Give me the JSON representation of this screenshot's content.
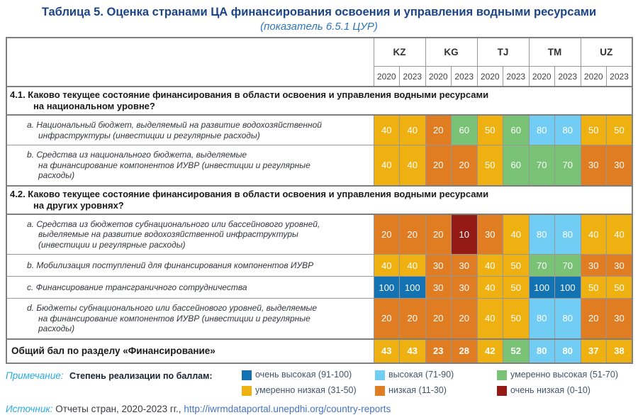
{
  "title": "Таблица 5. Оценка странами ЦА финансирования освоения и управления водными ресурсами",
  "subtitle": "(показатель 6.5.1 ЦУР)",
  "table": {
    "countries": [
      "KZ",
      "KG",
      "TJ",
      "TM",
      "UZ"
    ],
    "years": [
      "2020",
      "2023"
    ],
    "sections": [
      {
        "header": "4.1. Каково текущее состояние финансирования в области освоения и управления водными ресурсами\nна национальном уровне?",
        "rows": [
          {
            "label": "a. Национальный бюджет, выделяемый на развитие водохозяйственной\nинфраструктуры (инвестиции и регулярные расходы)",
            "values": [
              40,
              40,
              20,
              60,
              50,
              60,
              80,
              80,
              50,
              50
            ]
          },
          {
            "label": "b. Средства из национального бюджета, выделяемые\nна финансирование компонентов ИУВР (инвестиции и регулярные\nрасходы)",
            "values": [
              40,
              40,
              20,
              20,
              50,
              60,
              70,
              70,
              30,
              30
            ]
          }
        ]
      },
      {
        "header": "4.2. Каково текущее состояние финансирования в области освоения и управления водными ресурсами\nна других уровнях?",
        "rows": [
          {
            "label": "a. Средства из бюджетов субнационального или бассейнового уровней,\nвыделяемые на развитие водохозяйственной инфраструктуры\n(инвестиции и регулярные расходы)",
            "values": [
              20,
              20,
              20,
              10,
              30,
              40,
              80,
              80,
              40,
              40
            ]
          },
          {
            "label": "b. Мобилизация поступлений для финансирования компонентов ИУВР",
            "values": [
              40,
              40,
              30,
              30,
              40,
              50,
              70,
              70,
              30,
              30
            ]
          },
          {
            "label": "c. Финансирование трансграничного сотрудничества",
            "values": [
              100,
              100,
              30,
              30,
              40,
              50,
              100,
              100,
              50,
              50
            ]
          },
          {
            "label": "d. Бюджеты субнационального или бассейнового уровней, выделяемые\nна финансирование компонентов ИУВР (инвестиции и регулярные\nрасходы)",
            "values": [
              20,
              20,
              20,
              20,
              40,
              50,
              80,
              80,
              20,
              30
            ]
          }
        ]
      }
    ],
    "total_row": {
      "label": "Общий бал по разделу «Финансирование»",
      "values": [
        43,
        43,
        23,
        28,
        42,
        52,
        80,
        80,
        37,
        38
      ]
    }
  },
  "legend": {
    "note_label": "Примечание:",
    "scale_label": "Степень реализации по баллам:",
    "items": [
      {
        "label": "очень высокая (91-100)",
        "color": "#1272B2",
        "min": 91,
        "max": 100
      },
      {
        "label": "высокая (71-90)",
        "color": "#72CDF4",
        "min": 71,
        "max": 90
      },
      {
        "label": "умеренно высокая (51-70)",
        "color": "#7AC276",
        "min": 51,
        "max": 70
      },
      {
        "label": "умеренно низкая (31-50)",
        "color": "#EEB111",
        "min": 31,
        "max": 50
      },
      {
        "label": "низкая (11-30)",
        "color": "#E07C22",
        "min": 11,
        "max": 30
      },
      {
        "label": "очень низкая (0-10)",
        "color": "#931A15",
        "min": 0,
        "max": 10
      }
    ]
  },
  "source": {
    "label": "Источник:",
    "text": "Отчеты стран, 2020-2023 гг., ",
    "link": "http://iwrmdataportal.unepdhi.org/country-reports"
  },
  "chart_data": {
    "type": "heatmap",
    "title": "Таблица 5. Оценка странами ЦА финансирования освоения и управления водными ресурсами (показатель 6.5.1 ЦУР)",
    "columns": [
      "KZ 2020",
      "KZ 2023",
      "KG 2020",
      "KG 2023",
      "TJ 2020",
      "TJ 2023",
      "TM 2020",
      "TM 2023",
      "UZ 2020",
      "UZ 2023"
    ],
    "rows": [
      {
        "name": "4.1.a Национальный бюджет на развитие водохозяйственной инфраструктуры",
        "values": [
          40,
          40,
          20,
          60,
          50,
          60,
          80,
          80,
          50,
          50
        ]
      },
      {
        "name": "4.1.b Средства из национального бюджета на компоненты ИУВР",
        "values": [
          40,
          40,
          20,
          20,
          50,
          60,
          70,
          70,
          30,
          30
        ]
      },
      {
        "name": "4.2.a Средства бюджетов субнационального/бассейнового уровней на инфраструктуру",
        "values": [
          20,
          20,
          20,
          10,
          30,
          40,
          80,
          80,
          40,
          40
        ]
      },
      {
        "name": "4.2.b Мобилизация поступлений для финансирования компонентов ИУВР",
        "values": [
          40,
          40,
          30,
          30,
          40,
          50,
          70,
          70,
          30,
          30
        ]
      },
      {
        "name": "4.2.c Финансирование трансграничного сотрудничества",
        "values": [
          100,
          100,
          30,
          30,
          40,
          50,
          100,
          100,
          50,
          50
        ]
      },
      {
        "name": "4.2.d Бюджеты субнационального/бассейнового уровней на компоненты ИУВР",
        "values": [
          20,
          20,
          20,
          20,
          40,
          50,
          80,
          80,
          20,
          30
        ]
      },
      {
        "name": "Общий бал по разделу «Финансирование»",
        "values": [
          43,
          43,
          23,
          28,
          42,
          52,
          80,
          80,
          37,
          38
        ]
      }
    ],
    "value_range": [
      0,
      100
    ]
  }
}
